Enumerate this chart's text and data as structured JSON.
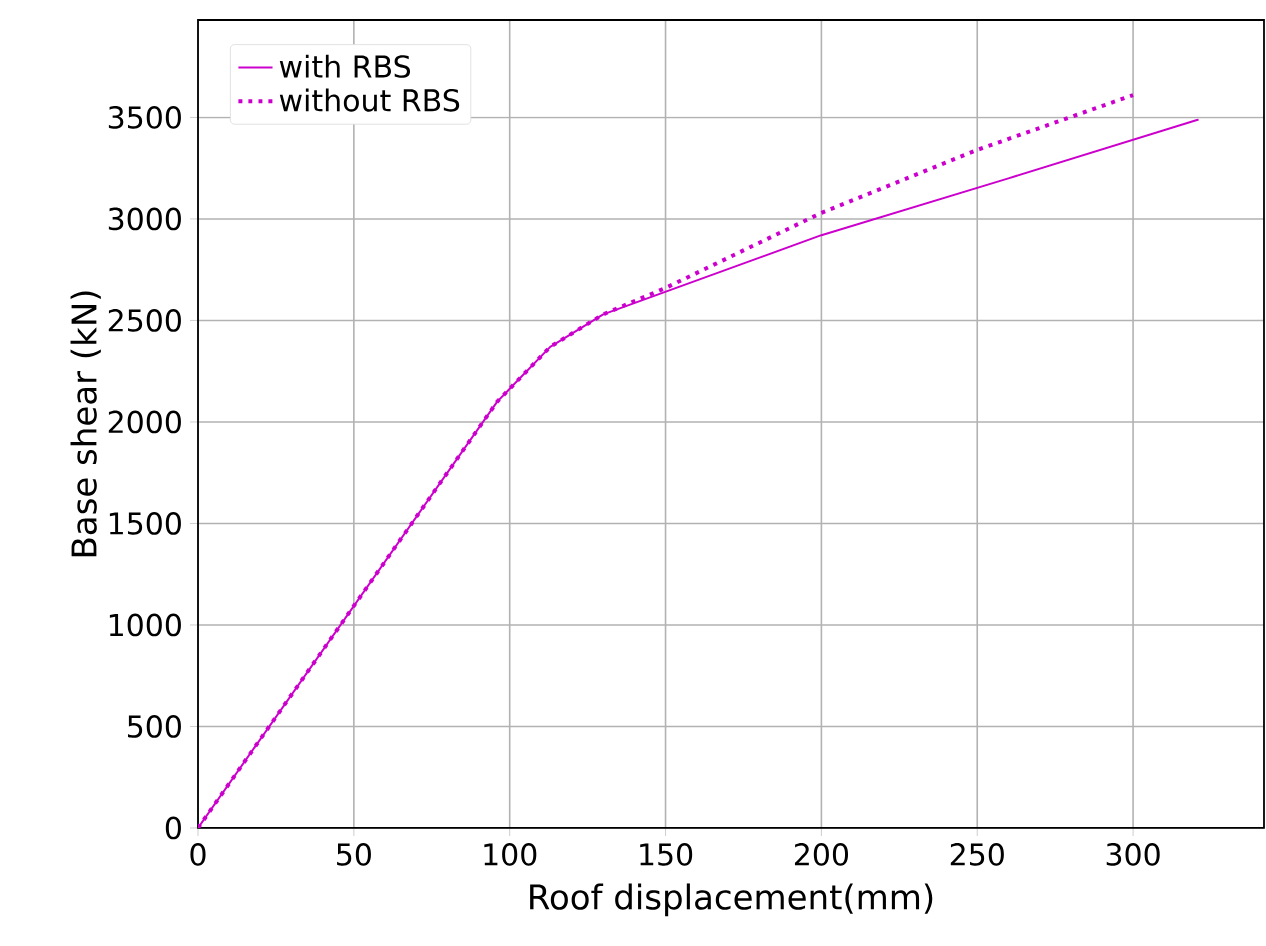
{
  "chart_data": {
    "type": "line",
    "xlabel": "Roof displacement(mm)",
    "ylabel": "Base shear (kN)",
    "xlim": [
      0,
      342
    ],
    "ylim": [
      0,
      3980
    ],
    "xticks": [
      0,
      50,
      100,
      150,
      200,
      250,
      300
    ],
    "yticks": [
      0,
      500,
      1000,
      1500,
      2000,
      2500,
      3000,
      3500
    ],
    "grid": true,
    "legend": "top left",
    "series": [
      {
        "name": "with RBS",
        "color": "#cc00cc",
        "line_style": "solid",
        "x": [
          0,
          96,
          113,
          130,
          200,
          260,
          321
        ],
        "values": [
          0,
          2100,
          2370,
          2530,
          2920,
          3200,
          3490
        ]
      },
      {
        "name": "without RBS",
        "color": "#cc00cc",
        "line_style": "dotted",
        "x": [
          0,
          96,
          113,
          130,
          150,
          200,
          250,
          300
        ],
        "values": [
          0,
          2100,
          2370,
          2530,
          2660,
          3030,
          3340,
          3610
        ]
      }
    ]
  }
}
